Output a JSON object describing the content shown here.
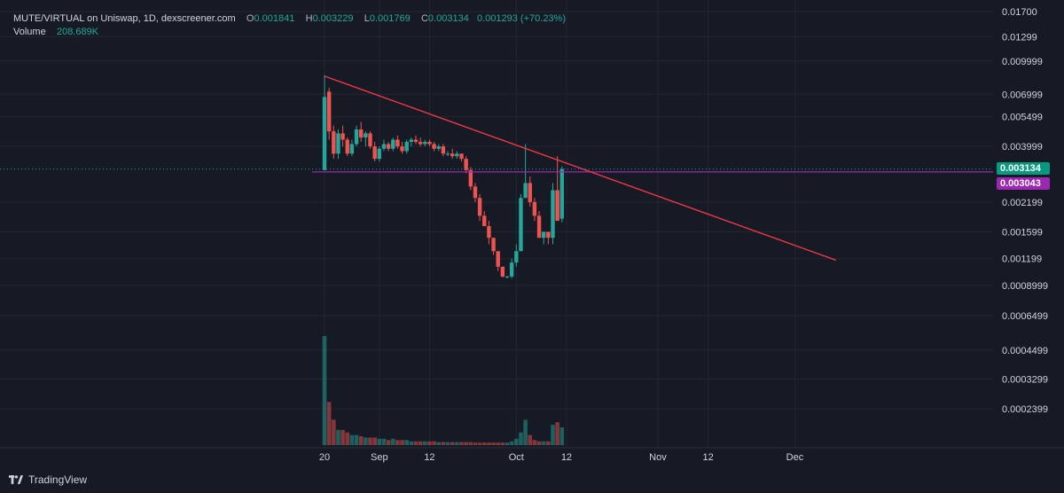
{
  "legend": {
    "symbol": "MUTE/VIRTUAL on Uniswap, 1D, dexscreener.com",
    "open_label": "O",
    "open": "0.001841",
    "high_label": "H",
    "high": "0.003229",
    "low_label": "L",
    "low": "0.001769",
    "close_label": "C",
    "close": "0.003134",
    "change": "0.001293 (+70.23%)",
    "volume_label": "Volume",
    "volume": "208.689K"
  },
  "brand": {
    "name": "TradingView"
  },
  "price_tags": {
    "last": {
      "label": "0.003134",
      "color": "#089981"
    },
    "level": {
      "label": "0.003043",
      "color": "#9c27b0"
    }
  },
  "colors": {
    "up": "#26a69a",
    "down": "#ef5350",
    "trend": "#f23645",
    "level": "#9c27b0",
    "grid": "#232632",
    "axis_text": "#d1d4dc"
  },
  "chart_data": {
    "type": "candlestick",
    "y_scale": "log",
    "y_ticks": [
      "0.01700",
      "0.01299",
      "0.009999",
      "0.006999",
      "0.005499",
      "0.003999",
      "0.002199",
      "0.001599",
      "0.001199",
      "0.0008999",
      "0.0006499",
      "0.0004499",
      "0.0003299",
      "0.0002399"
    ],
    "x_ticks": [
      "20",
      "Sep",
      "12",
      "Oct",
      "12",
      "Nov",
      "12",
      "Dec"
    ],
    "horizontal_level": 0.003043,
    "trendline": {
      "from": [
        "2024-08-20",
        0.0085
      ],
      "to": [
        "2024-12-10",
        0.00118
      ]
    },
    "candles": [
      {
        "d": "2024-08-20",
        "o": 0.0031,
        "h": 0.0086,
        "l": 0.0031,
        "c": 0.0068,
        "v": 4.3
      },
      {
        "d": "2024-08-21",
        "o": 0.0072,
        "h": 0.0075,
        "l": 0.0043,
        "c": 0.0047,
        "v": 1.7
      },
      {
        "d": "2024-08-22",
        "o": 0.0047,
        "h": 0.005,
        "l": 0.0035,
        "c": 0.0037,
        "v": 1.0
      },
      {
        "d": "2024-08-23",
        "o": 0.0037,
        "h": 0.0048,
        "l": 0.0035,
        "c": 0.0046,
        "v": 0.6
      },
      {
        "d": "2024-08-24",
        "o": 0.0046,
        "h": 0.005,
        "l": 0.004,
        "c": 0.0043,
        "v": 0.6
      },
      {
        "d": "2024-08-25",
        "o": 0.0043,
        "h": 0.0044,
        "l": 0.0036,
        "c": 0.0037,
        "v": 0.5
      },
      {
        "d": "2024-08-26",
        "o": 0.0037,
        "h": 0.0043,
        "l": 0.0036,
        "c": 0.0041,
        "v": 0.4
      },
      {
        "d": "2024-08-27",
        "o": 0.0041,
        "h": 0.005,
        "l": 0.004,
        "c": 0.0048,
        "v": 0.4
      },
      {
        "d": "2024-08-28",
        "o": 0.0048,
        "h": 0.0052,
        "l": 0.0042,
        "c": 0.0044,
        "v": 0.35
      },
      {
        "d": "2024-08-29",
        "o": 0.0044,
        "h": 0.0047,
        "l": 0.004,
        "c": 0.0046,
        "v": 0.3
      },
      {
        "d": "2024-08-30",
        "o": 0.0046,
        "h": 0.0047,
        "l": 0.0039,
        "c": 0.004,
        "v": 0.3
      },
      {
        "d": "2024-08-31",
        "o": 0.004,
        "h": 0.0042,
        "l": 0.0034,
        "c": 0.0035,
        "v": 0.3
      },
      {
        "d": "2024-09-01",
        "o": 0.0035,
        "h": 0.004,
        "l": 0.0034,
        "c": 0.0039,
        "v": 0.25
      },
      {
        "d": "2024-09-02",
        "o": 0.0039,
        "h": 0.0043,
        "l": 0.0038,
        "c": 0.0041,
        "v": 0.25
      },
      {
        "d": "2024-09-03",
        "o": 0.0041,
        "h": 0.0042,
        "l": 0.0038,
        "c": 0.0039,
        "v": 0.2
      },
      {
        "d": "2024-09-04",
        "o": 0.0039,
        "h": 0.0044,
        "l": 0.0038,
        "c": 0.0043,
        "v": 0.25
      },
      {
        "d": "2024-09-05",
        "o": 0.0043,
        "h": 0.0045,
        "l": 0.0039,
        "c": 0.004,
        "v": 0.2
      },
      {
        "d": "2024-09-06",
        "o": 0.004,
        "h": 0.0042,
        "l": 0.0037,
        "c": 0.0038,
        "v": 0.2
      },
      {
        "d": "2024-09-07",
        "o": 0.0038,
        "h": 0.0043,
        "l": 0.0037,
        "c": 0.0042,
        "v": 0.2
      },
      {
        "d": "2024-09-08",
        "o": 0.0042,
        "h": 0.0044,
        "l": 0.004,
        "c": 0.0043,
        "v": 0.15
      },
      {
        "d": "2024-09-09",
        "o": 0.0043,
        "h": 0.0045,
        "l": 0.0041,
        "c": 0.0042,
        "v": 0.15
      },
      {
        "d": "2024-09-10",
        "o": 0.0042,
        "h": 0.0044,
        "l": 0.004,
        "c": 0.0041,
        "v": 0.15
      },
      {
        "d": "2024-09-11",
        "o": 0.0041,
        "h": 0.0043,
        "l": 0.004,
        "c": 0.0042,
        "v": 0.15
      },
      {
        "d": "2024-09-12",
        "o": 0.0042,
        "h": 0.0043,
        "l": 0.004,
        "c": 0.0041,
        "v": 0.15
      },
      {
        "d": "2024-09-13",
        "o": 0.0041,
        "h": 0.0042,
        "l": 0.0038,
        "c": 0.0039,
        "v": 0.15
      },
      {
        "d": "2024-09-14",
        "o": 0.0039,
        "h": 0.0041,
        "l": 0.0038,
        "c": 0.004,
        "v": 0.12
      },
      {
        "d": "2024-09-15",
        "o": 0.004,
        "h": 0.0041,
        "l": 0.0036,
        "c": 0.0037,
        "v": 0.12
      },
      {
        "d": "2024-09-16",
        "o": 0.0037,
        "h": 0.0038,
        "l": 0.0036,
        "c": 0.0037,
        "v": 0.12
      },
      {
        "d": "2024-09-17",
        "o": 0.0037,
        "h": 0.0039,
        "l": 0.0035,
        "c": 0.0036,
        "v": 0.12
      },
      {
        "d": "2024-09-18",
        "o": 0.0036,
        "h": 0.0038,
        "l": 0.0035,
        "c": 0.0037,
        "v": 0.12
      },
      {
        "d": "2024-09-19",
        "o": 0.0037,
        "h": 0.0037,
        "l": 0.0034,
        "c": 0.0035,
        "v": 0.12
      },
      {
        "d": "2024-09-20",
        "o": 0.0035,
        "h": 0.0036,
        "l": 0.003,
        "c": 0.0031,
        "v": 0.12
      },
      {
        "d": "2024-09-21",
        "o": 0.0031,
        "h": 0.0032,
        "l": 0.0025,
        "c": 0.0026,
        "v": 0.12
      },
      {
        "d": "2024-09-22",
        "o": 0.0026,
        "h": 0.0027,
        "l": 0.0022,
        "c": 0.0023,
        "v": 0.1
      },
      {
        "d": "2024-09-23",
        "o": 0.0023,
        "h": 0.0024,
        "l": 0.0018,
        "c": 0.0019,
        "v": 0.1
      },
      {
        "d": "2024-09-24",
        "o": 0.0019,
        "h": 0.002,
        "l": 0.0017,
        "c": 0.0017,
        "v": 0.1
      },
      {
        "d": "2024-09-25",
        "o": 0.0017,
        "h": 0.0018,
        "l": 0.0014,
        "c": 0.0015,
        "v": 0.1
      },
      {
        "d": "2024-09-26",
        "o": 0.0015,
        "h": 0.0015,
        "l": 0.00125,
        "c": 0.0013,
        "v": 0.1
      },
      {
        "d": "2024-09-27",
        "o": 0.0013,
        "h": 0.0013,
        "l": 0.00105,
        "c": 0.0011,
        "v": 0.1
      },
      {
        "d": "2024-09-28",
        "o": 0.0011,
        "h": 0.0011,
        "l": 0.00098,
        "c": 0.00099,
        "v": 0.1
      },
      {
        "d": "2024-09-29",
        "o": 0.00099,
        "h": 0.001,
        "l": 0.00097,
        "c": 0.00099,
        "v": 0.1
      },
      {
        "d": "2024-09-30",
        "o": 0.00099,
        "h": 0.0012,
        "l": 0.00097,
        "c": 0.00115,
        "v": 0.15
      },
      {
        "d": "2024-10-01",
        "o": 0.00115,
        "h": 0.0014,
        "l": 0.0011,
        "c": 0.0013,
        "v": 0.25
      },
      {
        "d": "2024-10-02",
        "o": 0.0013,
        "h": 0.0024,
        "l": 0.0013,
        "c": 0.0023,
        "v": 0.5
      },
      {
        "d": "2024-10-03",
        "o": 0.0023,
        "h": 0.0041,
        "l": 0.0023,
        "c": 0.0027,
        "v": 1.0
      },
      {
        "d": "2024-10-04",
        "o": 0.0027,
        "h": 0.0029,
        "l": 0.0021,
        "c": 0.0022,
        "v": 0.4
      },
      {
        "d": "2024-10-05",
        "o": 0.0022,
        "h": 0.0023,
        "l": 0.0018,
        "c": 0.0019,
        "v": 0.2
      },
      {
        "d": "2024-10-06",
        "o": 0.0019,
        "h": 0.002,
        "l": 0.0015,
        "c": 0.0015,
        "v": 0.15
      },
      {
        "d": "2024-10-07",
        "o": 0.0015,
        "h": 0.0016,
        "l": 0.0014,
        "c": 0.0016,
        "v": 0.15
      },
      {
        "d": "2024-10-08",
        "o": 0.0016,
        "h": 0.0016,
        "l": 0.0014,
        "c": 0.0015,
        "v": 0.15
      },
      {
        "d": "2024-10-09",
        "o": 0.0015,
        "h": 0.0027,
        "l": 0.0014,
        "c": 0.0025,
        "v": 0.8
      },
      {
        "d": "2024-10-10",
        "o": 0.0025,
        "h": 0.0036,
        "l": 0.0018,
        "c": 0.0018,
        "v": 0.9
      },
      {
        "d": "2024-10-11",
        "o": 0.001841,
        "h": 0.003229,
        "l": 0.001769,
        "c": 0.003134,
        "v": 0.7
      }
    ]
  }
}
